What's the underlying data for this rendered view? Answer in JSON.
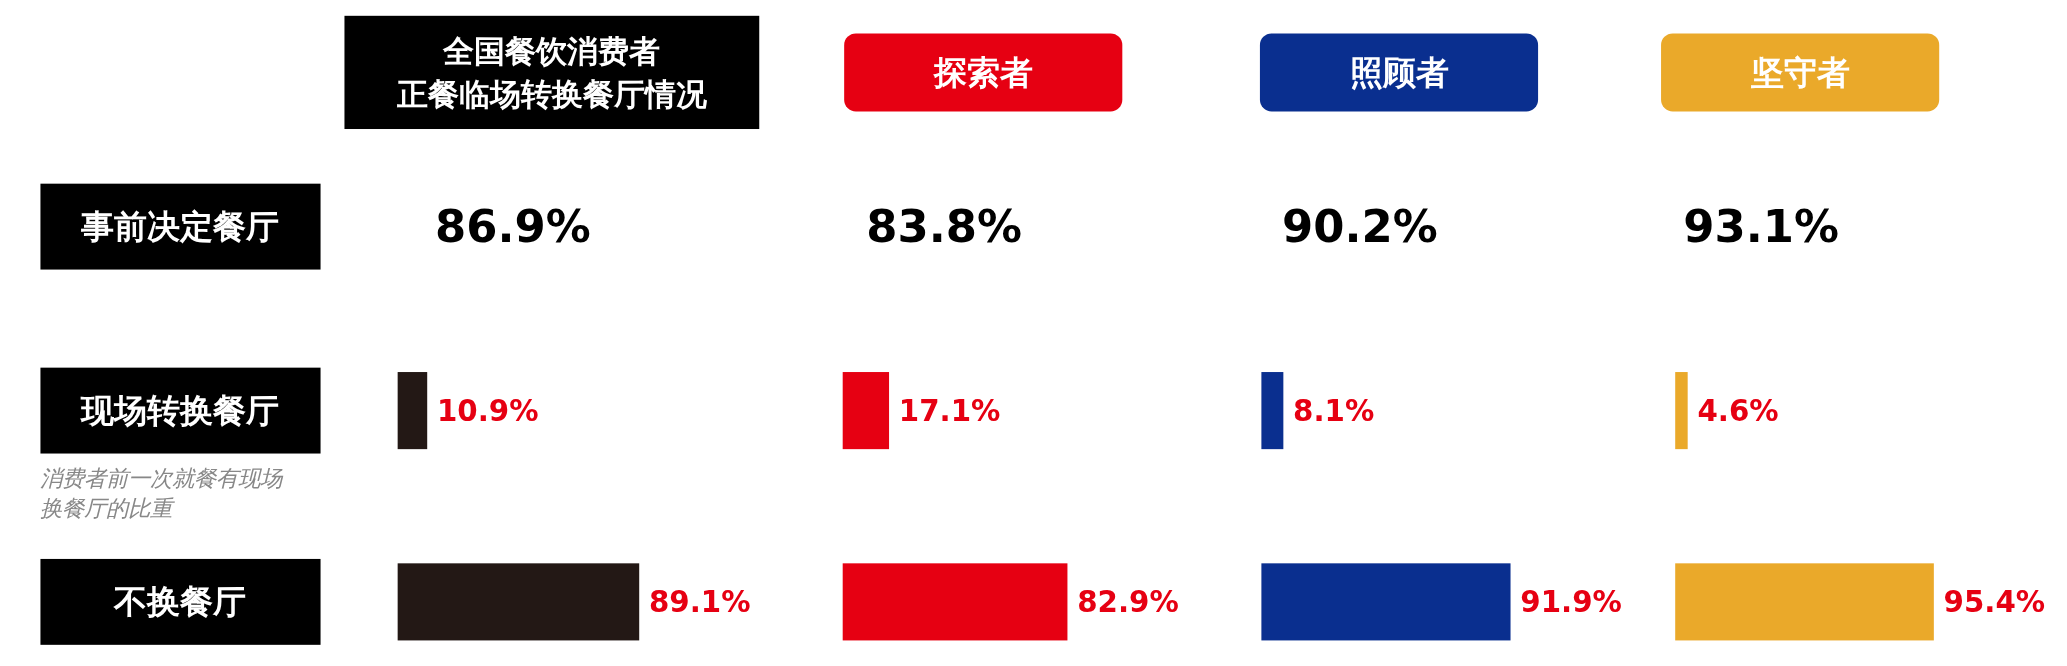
{
  "chart_data": [
    {
      "type": "other",
      "ylabel": "事前决定餐厅",
      "categories": [
        "全国餐饮消费者正餐临场转换餐厅情况",
        "探索者",
        "照顾者",
        "坚守者"
      ],
      "colors": [
        "#000000",
        "#e60012",
        "#0a2f8f",
        "#eaa92a"
      ],
      "values": [
        86.9,
        83.8,
        90.2,
        93.1
      ],
      "value_labels": [
        "86.9%",
        "83.8%",
        "90.2%",
        "93.1%"
      ]
    },
    {
      "type": "bar",
      "orientation": "horizontal",
      "categories": [
        "现场转换餐厅",
        "不换餐厅"
      ],
      "color": "#231815",
      "values": [
        10.9,
        89.1
      ],
      "value_labels": [
        "10.9%",
        "89.1%"
      ],
      "annotations": [
        "消费者前一次就餐有现场换餐厅的比重"
      ]
    },
    {
      "type": "bar",
      "orientation": "horizontal",
      "categories": [
        null,
        null
      ],
      "color": "#e60012",
      "values": [
        17.1,
        82.9
      ],
      "value_labels": [
        "17.1%",
        "82.9%"
      ]
    },
    {
      "type": "bar",
      "orientation": "horizontal",
      "categories": [
        null,
        null
      ],
      "color": "#0a2f8f",
      "values": [
        8.1,
        91.9
      ],
      "value_labels": [
        "8.1%",
        "91.9%"
      ]
    },
    {
      "type": "bar",
      "orientation": "horizontal",
      "categories": [
        null,
        null
      ],
      "color": "#eaa92a",
      "values": [
        4.6,
        95.4
      ],
      "value_labels": [
        "4.6%",
        "95.4%"
      ]
    }
  ]
}
